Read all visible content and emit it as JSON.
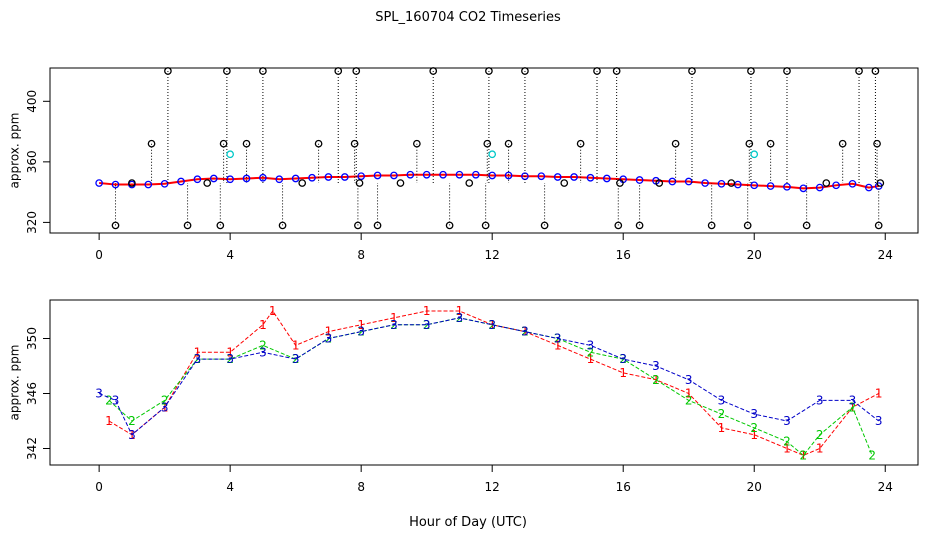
{
  "title": "SPL_160704  CO2 Timeseries",
  "xlabel": "Hour of Day (UTC)",
  "chart_data": [
    {
      "type": "scatter",
      "panel": "top",
      "ylabel": "approx. ppm",
      "xlim": [
        -1.5,
        25
      ],
      "ylim": [
        313,
        422
      ],
      "xticks": [
        0,
        4,
        8,
        12,
        16,
        20,
        24
      ],
      "yticks": [
        320,
        360,
        400
      ],
      "series": [
        {
          "marker": "circle",
          "color": "#0000ff",
          "points": [
            [
              0,
              346
            ],
            [
              0.5,
              345
            ],
            [
              1,
              345
            ],
            [
              1.5,
              345
            ],
            [
              2,
              345.5
            ],
            [
              2.5,
              347
            ],
            [
              3,
              348.5
            ],
            [
              3.5,
              349
            ],
            [
              4,
              348.5
            ],
            [
              4.5,
              349
            ],
            [
              5,
              349.5
            ],
            [
              5.5,
              348.5
            ],
            [
              6,
              349
            ],
            [
              6.5,
              349.5
            ],
            [
              7,
              350
            ],
            [
              7.5,
              350
            ],
            [
              8,
              350.5
            ],
            [
              8.5,
              351
            ],
            [
              9,
              351
            ],
            [
              9.5,
              351.5
            ],
            [
              10,
              351.5
            ],
            [
              10.5,
              351.5
            ],
            [
              11,
              351.5
            ],
            [
              11.5,
              351.5
            ],
            [
              12,
              351
            ],
            [
              12.5,
              351
            ],
            [
              13,
              350.5
            ],
            [
              13.5,
              350.5
            ],
            [
              14,
              350
            ],
            [
              14.5,
              350
            ],
            [
              15,
              349.5
            ],
            [
              15.5,
              349
            ],
            [
              16,
              348.5
            ],
            [
              16.5,
              348
            ],
            [
              17,
              347.5
            ],
            [
              17.5,
              347
            ],
            [
              18,
              347
            ],
            [
              18.5,
              346
            ],
            [
              19,
              345.5
            ],
            [
              19.5,
              345
            ],
            [
              20,
              344.5
            ],
            [
              20.5,
              344
            ],
            [
              21,
              343.5
            ],
            [
              21.5,
              342.5
            ],
            [
              22,
              343
            ],
            [
              22.5,
              344.5
            ],
            [
              23,
              345.5
            ],
            [
              23.5,
              343
            ],
            [
              23.8,
              344
            ]
          ]
        },
        {
          "marker": "circle",
          "color": "#000000",
          "points": [
            [
              0.5,
              318
            ],
            [
              1,
              346
            ],
            [
              1.6,
              372
            ],
            [
              2.1,
              420
            ],
            [
              2.7,
              318
            ],
            [
              3.3,
              346
            ],
            [
              3.7,
              318
            ],
            [
              3.8,
              372
            ],
            [
              3.9,
              420
            ],
            [
              4.5,
              372
            ],
            [
              5,
              420
            ],
            [
              5.6,
              318
            ],
            [
              6.2,
              346
            ],
            [
              6.7,
              372
            ],
            [
              7.3,
              420
            ],
            [
              7.8,
              372
            ],
            [
              7.85,
              420
            ],
            [
              7.9,
              318
            ],
            [
              7.95,
              346
            ],
            [
              8.5,
              318
            ],
            [
              9.2,
              346
            ],
            [
              9.7,
              372
            ],
            [
              10.2,
              420
            ],
            [
              10.7,
              318
            ],
            [
              11.3,
              346
            ],
            [
              11.8,
              318
            ],
            [
              11.85,
              372
            ],
            [
              11.9,
              420
            ],
            [
              12.5,
              372
            ],
            [
              13,
              420
            ],
            [
              13.6,
              318
            ],
            [
              14.2,
              346
            ],
            [
              14.7,
              372
            ],
            [
              15.2,
              420
            ],
            [
              15.8,
              420
            ],
            [
              15.85,
              318
            ],
            [
              15.9,
              346
            ],
            [
              16.5,
              318
            ],
            [
              17.1,
              346
            ],
            [
              17.6,
              372
            ],
            [
              18.1,
              420
            ],
            [
              18.7,
              318
            ],
            [
              19.3,
              346
            ],
            [
              19.8,
              318
            ],
            [
              19.85,
              372
            ],
            [
              19.9,
              420
            ],
            [
              20.5,
              372
            ],
            [
              21,
              420
            ],
            [
              21.6,
              318
            ],
            [
              22.2,
              346
            ],
            [
              22.7,
              372
            ],
            [
              23.2,
              420
            ],
            [
              23.7,
              420
            ],
            [
              23.75,
              372
            ],
            [
              23.8,
              318
            ],
            [
              23.85,
              346
            ]
          ]
        },
        {
          "marker": "circle",
          "color": "#00c8c8",
          "points": [
            [
              4,
              365
            ],
            [
              12,
              365
            ],
            [
              20,
              365
            ]
          ]
        }
      ]
    },
    {
      "type": "scatter",
      "panel": "bottom",
      "ylabel": "approx. ppm",
      "xlim": [
        -1.5,
        25
      ],
      "ylim": [
        340.8,
        352.8
      ],
      "xticks": [
        0,
        4,
        8,
        12,
        16,
        20,
        24
      ],
      "yticks": [
        342,
        346,
        350
      ],
      "series": [
        {
          "name": "1",
          "marker": "1",
          "color": "#ff0000",
          "points": [
            [
              0.3,
              344
            ],
            [
              1,
              343
            ],
            [
              2,
              345
            ],
            [
              3,
              349
            ],
            [
              4,
              349
            ],
            [
              5,
              351
            ],
            [
              5.3,
              352
            ],
            [
              6,
              349.5
            ],
            [
              7,
              350.5
            ],
            [
              8,
              351
            ],
            [
              9,
              351.5
            ],
            [
              10,
              352
            ],
            [
              11,
              352
            ],
            [
              12,
              351
            ],
            [
              13,
              350.5
            ],
            [
              14,
              349.5
            ],
            [
              15,
              348.5
            ],
            [
              16,
              347.5
            ],
            [
              17,
              347
            ],
            [
              18,
              346
            ],
            [
              19,
              343.5
            ],
            [
              20,
              343
            ],
            [
              21,
              342
            ],
            [
              21.5,
              341.5
            ],
            [
              22,
              342
            ],
            [
              23,
              345
            ],
            [
              23.8,
              346
            ]
          ]
        },
        {
          "name": "2",
          "marker": "2",
          "color": "#00c800",
          "points": [
            [
              0.3,
              345.5
            ],
            [
              1,
              344
            ],
            [
              2,
              345.5
            ],
            [
              3,
              348.5
            ],
            [
              4,
              348.5
            ],
            [
              5,
              349.5
            ],
            [
              6,
              348.5
            ],
            [
              7,
              350
            ],
            [
              8,
              350.5
            ],
            [
              9,
              351
            ],
            [
              10,
              351
            ],
            [
              11,
              351.5
            ],
            [
              12,
              351
            ],
            [
              13,
              350.5
            ],
            [
              14,
              350
            ],
            [
              15,
              349
            ],
            [
              16,
              348.5
            ],
            [
              17,
              347
            ],
            [
              18,
              345.5
            ],
            [
              19,
              344.5
            ],
            [
              20,
              343.5
            ],
            [
              21,
              342.5
            ],
            [
              21.5,
              341.5
            ],
            [
              22,
              343
            ],
            [
              23,
              345
            ],
            [
              23.6,
              341.5
            ]
          ]
        },
        {
          "name": "3",
          "marker": "3",
          "color": "#0000c8",
          "points": [
            [
              0,
              346
            ],
            [
              0.5,
              345.5
            ],
            [
              1,
              343
            ],
            [
              2,
              345
            ],
            [
              3,
              348.5
            ],
            [
              4,
              348.5
            ],
            [
              5,
              349
            ],
            [
              6,
              348.5
            ],
            [
              7,
              350
            ],
            [
              8,
              350.5
            ],
            [
              9,
              351
            ],
            [
              10,
              351
            ],
            [
              11,
              351.5
            ],
            [
              12,
              351
            ],
            [
              13,
              350.5
            ],
            [
              14,
              350
            ],
            [
              15,
              349.5
            ],
            [
              16,
              348.5
            ],
            [
              17,
              348
            ],
            [
              18,
              347
            ],
            [
              19,
              345.5
            ],
            [
              20,
              344.5
            ],
            [
              21,
              344
            ],
            [
              22,
              345.5
            ],
            [
              23,
              345.5
            ],
            [
              23.8,
              344
            ]
          ]
        }
      ]
    }
  ]
}
